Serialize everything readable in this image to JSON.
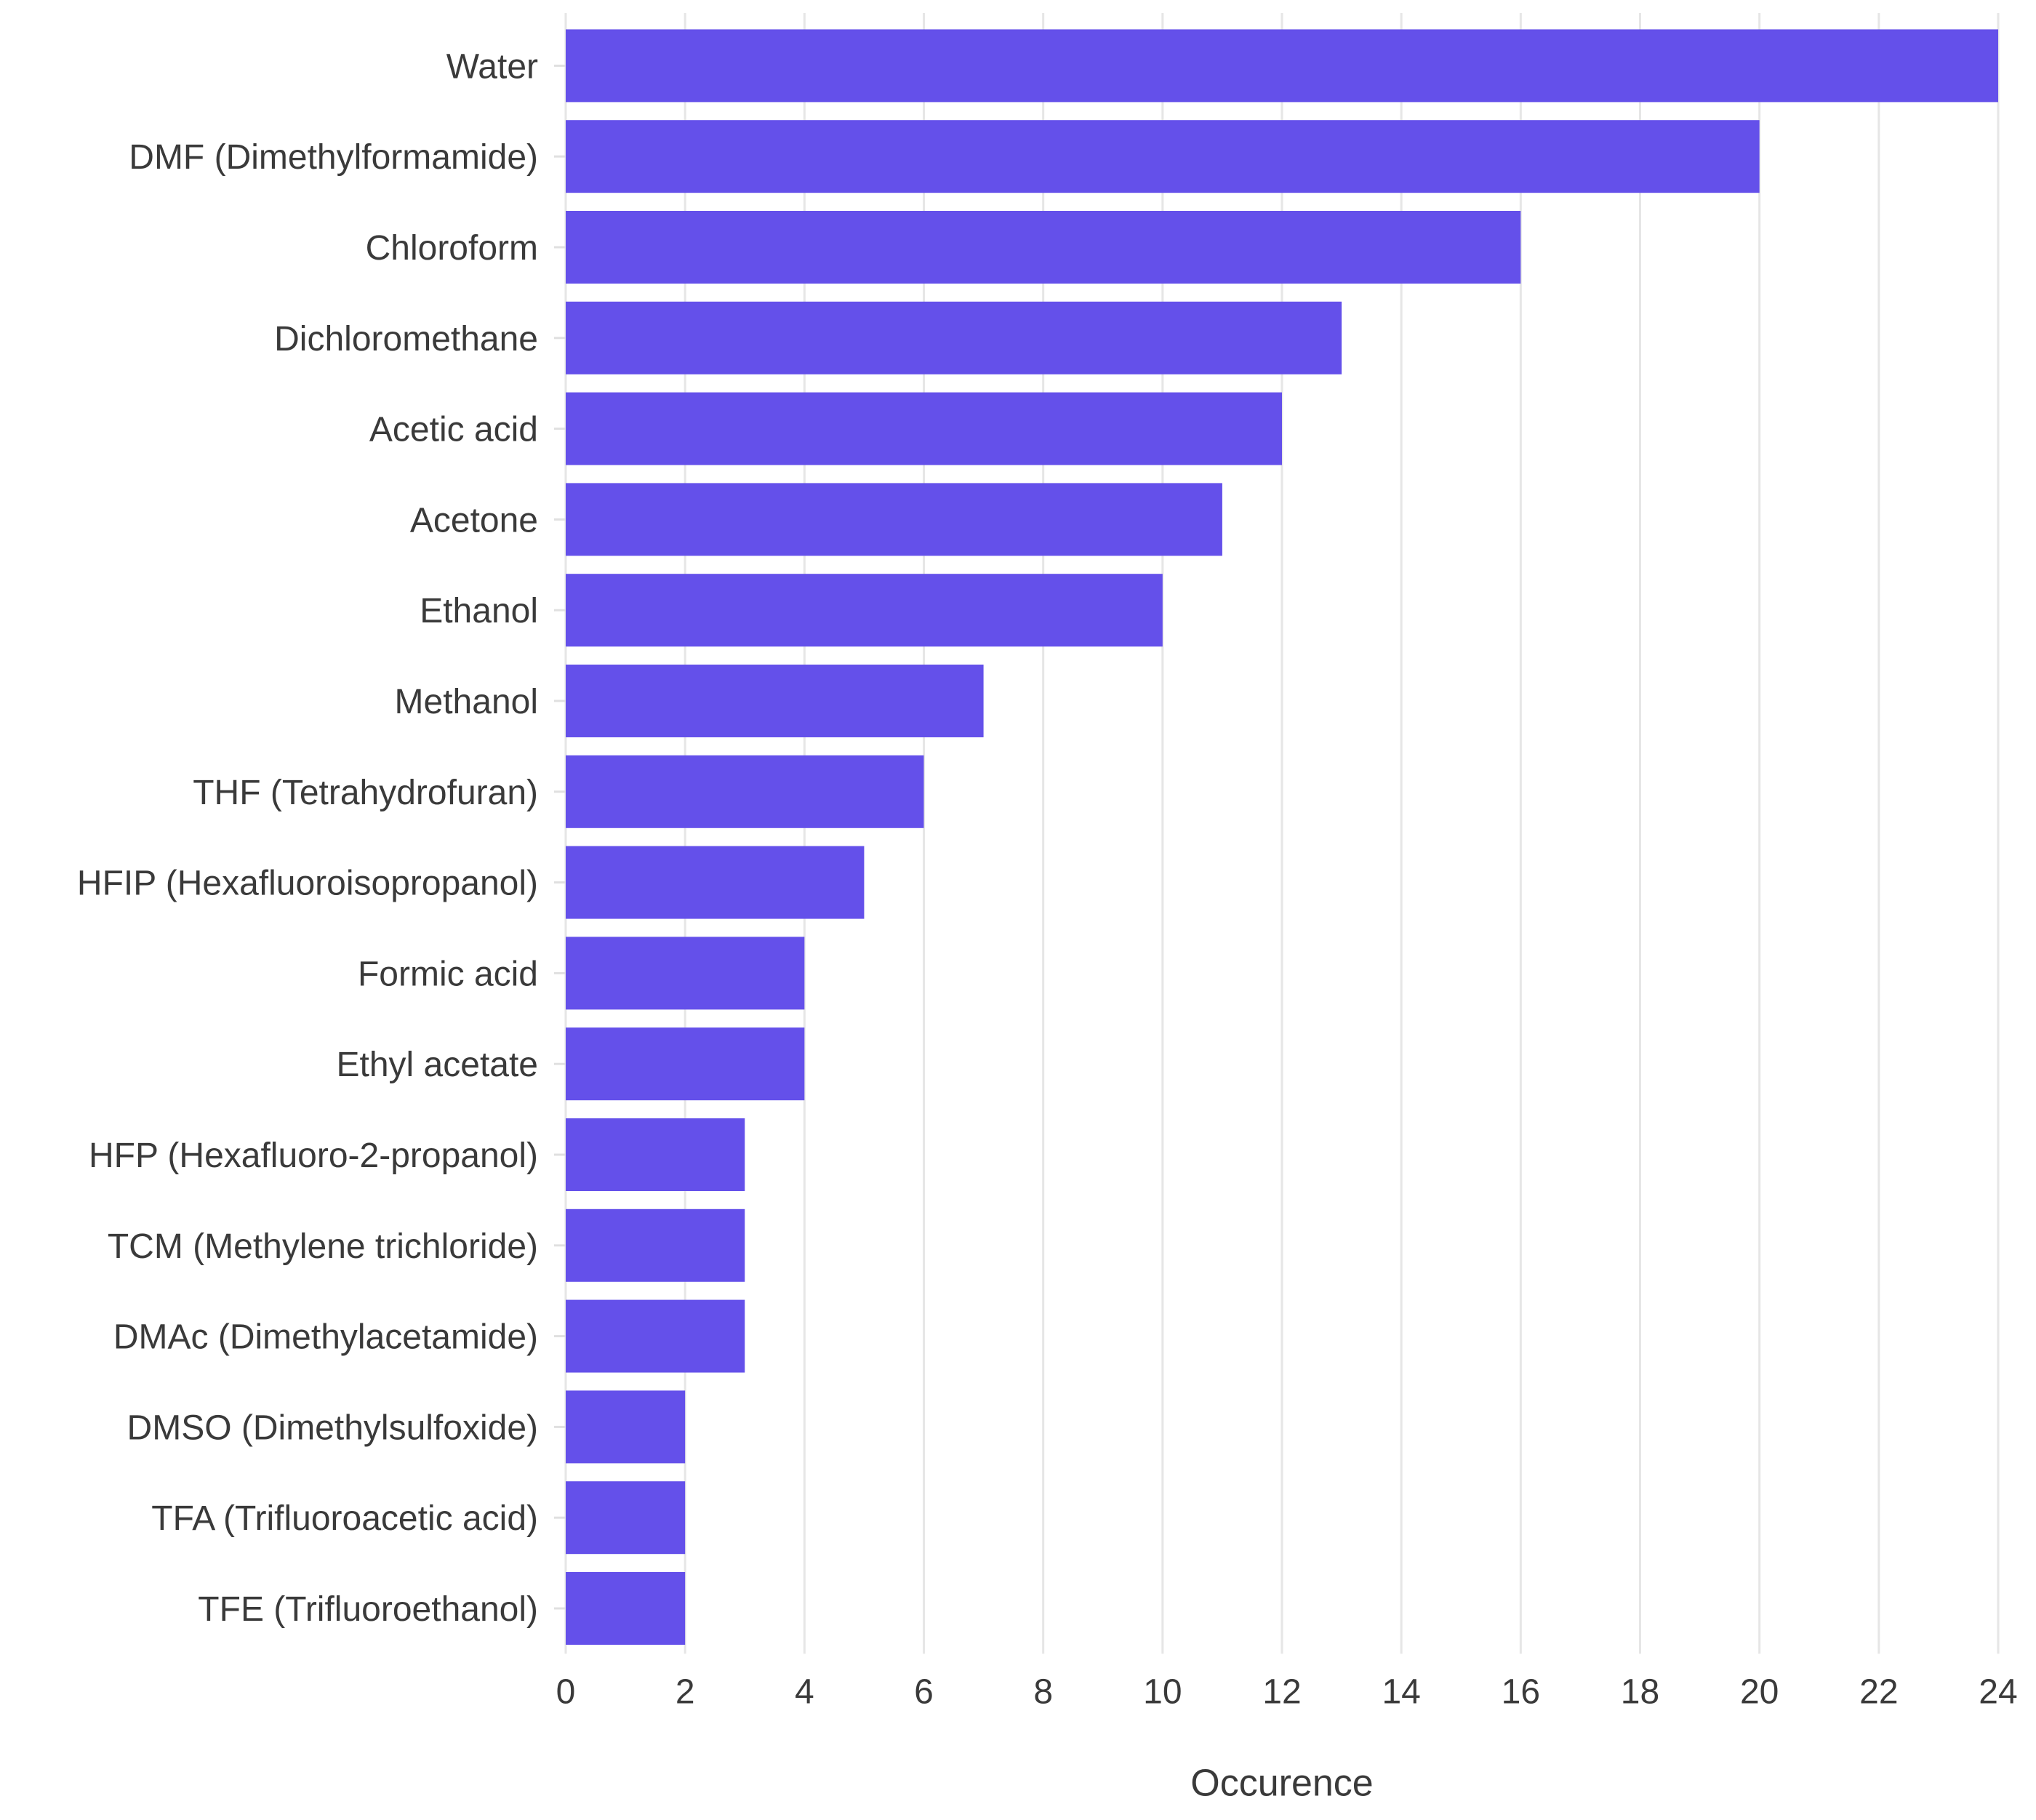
{
  "chart_data": {
    "type": "bar",
    "orientation": "horizontal",
    "categories": [
      "Water",
      "DMF (Dimethylformamide)",
      "Chloroform",
      "Dichloromethane",
      "Acetic acid",
      "Acetone",
      "Ethanol",
      "Methanol",
      "THF (Tetrahydrofuran)",
      "HFIP (Hexafluoroisopropanol)",
      "Formic acid",
      "Ethyl acetate",
      "HFP (Hexafluoro-2-propanol)",
      "TCM (Methylene trichloride)",
      "DMAc (Dimethylacetamide)",
      "DMSO (Dimethylsulfoxide)",
      "TFA (Trifluoroacetic acid)",
      "TFE (Trifluoroethanol)"
    ],
    "values": [
      24,
      20,
      16,
      13,
      12,
      11,
      10,
      7,
      6,
      5,
      4,
      4,
      3,
      3,
      3,
      2,
      2,
      2
    ],
    "xlabel": "Occurence",
    "ylabel": "",
    "xlim": [
      0,
      24
    ],
    "xticks": [
      "0",
      "2",
      "4",
      "6",
      "8",
      "10",
      "12",
      "14",
      "16",
      "18",
      "20",
      "22",
      "24"
    ],
    "grid": true,
    "bar_color": "#6450EA"
  }
}
